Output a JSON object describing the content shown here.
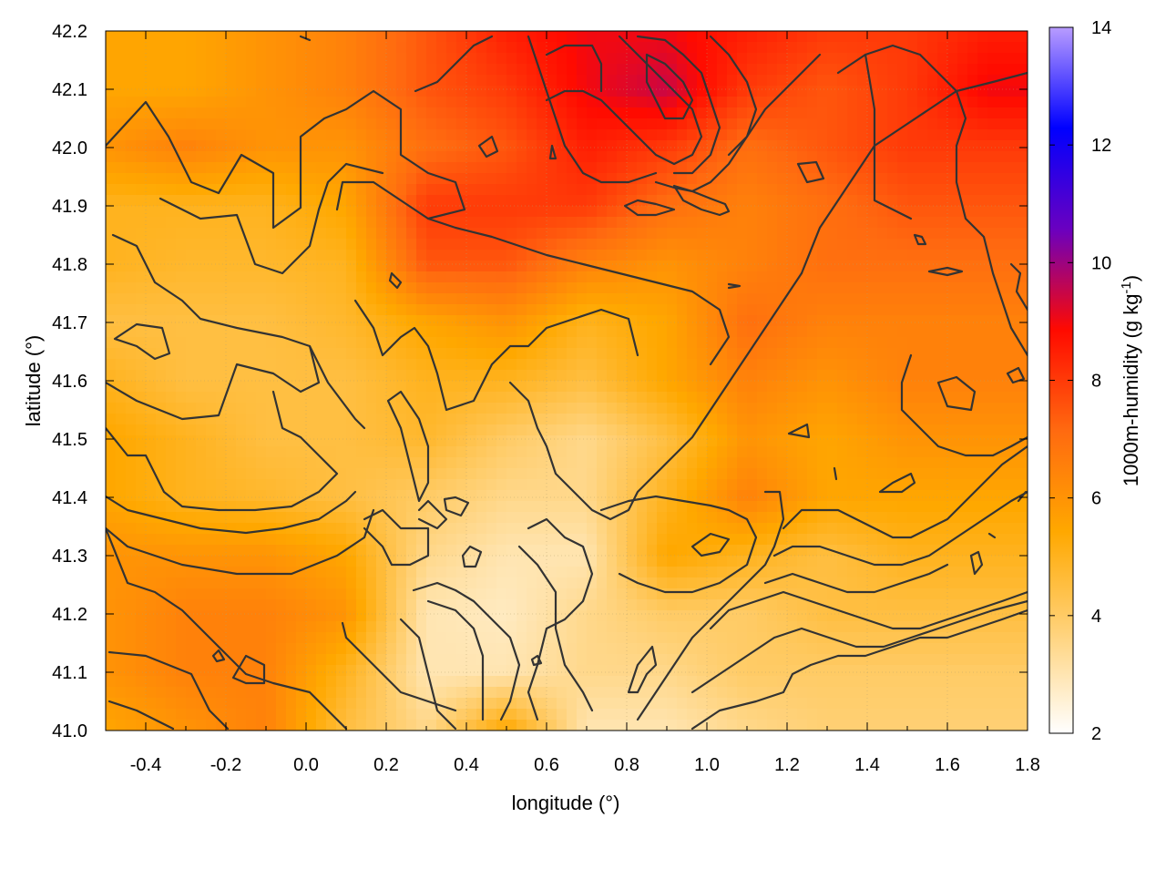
{
  "chart_data": {
    "type": "heatmap",
    "title": "",
    "xlabel": "longitude (°)",
    "ylabel": "latitude (°)",
    "colorbar_label": "1000m-humidity (g kg",
    "colorbar_label_sup": "-1",
    "colorbar_label_end": ")",
    "xlim": [
      -0.5,
      1.8
    ],
    "ylim": [
      41.0,
      42.2
    ],
    "x_ticks": [
      "-0.4",
      "-0.2",
      "0.0",
      "0.2",
      "0.4",
      "0.6",
      "0.8",
      "1.0",
      "1.2",
      "1.4",
      "1.6",
      "1.8"
    ],
    "x_tick_values": [
      -0.4,
      -0.2,
      0.0,
      0.2,
      0.4,
      0.6,
      0.8,
      1.0,
      1.2,
      1.4,
      1.6,
      1.8
    ],
    "y_ticks": [
      "41.0",
      "41.1",
      "41.2",
      "41.3",
      "41.4",
      "41.5",
      "41.6",
      "41.7",
      "41.8",
      "41.9",
      "42.0",
      "42.1",
      "42.2"
    ],
    "y_tick_values": [
      41.0,
      41.1,
      41.2,
      41.3,
      41.4,
      41.5,
      41.6,
      41.7,
      41.8,
      41.9,
      42.0,
      42.1,
      42.2
    ],
    "colorbar_ticks": [
      "2",
      "4",
      "6",
      "8",
      "10",
      "12",
      "14"
    ],
    "colorbar_tick_values": [
      2,
      4,
      6,
      8,
      10,
      12,
      14
    ],
    "colorbar_range": [
      2,
      14
    ],
    "colormap": [
      "#ffffff",
      "#ffd27a",
      "#ffa800",
      "#ff6a10",
      "#ff0a00",
      "#6a00c0",
      "#0000ff",
      "#b89cff"
    ],
    "grid": true,
    "legend": "none",
    "humidity_grid": {
      "lon": [
        -0.5,
        -0.3,
        -0.1,
        0.1,
        0.3,
        0.5,
        0.7,
        0.9,
        1.1,
        1.3,
        1.5,
        1.7
      ],
      "lat": [
        42.2,
        42.1,
        42.0,
        41.9,
        41.8,
        41.7,
        41.6,
        41.5,
        41.4,
        41.3,
        41.2,
        41.1,
        41.0
      ],
      "values": [
        [
          5.5,
          5.5,
          6.0,
          6.5,
          7.5,
          8.5,
          9.0,
          9.0,
          8.5,
          8.0,
          8.0,
          8.5
        ],
        [
          5.5,
          5.5,
          6.0,
          6.5,
          7.5,
          8.0,
          9.0,
          9.5,
          8.0,
          7.5,
          8.0,
          9.0
        ],
        [
          6.0,
          6.5,
          6.0,
          6.0,
          7.0,
          7.5,
          8.5,
          8.0,
          7.0,
          7.5,
          8.0,
          8.0
        ],
        [
          5.0,
          5.0,
          5.0,
          5.5,
          8.0,
          8.0,
          8.0,
          7.0,
          6.5,
          7.0,
          7.5,
          7.5
        ],
        [
          5.0,
          4.8,
          4.8,
          5.0,
          7.5,
          7.5,
          6.5,
          6.0,
          6.5,
          7.0,
          7.0,
          7.0
        ],
        [
          4.5,
          4.5,
          4.5,
          4.8,
          5.5,
          6.0,
          5.0,
          5.5,
          7.0,
          6.5,
          6.5,
          6.5
        ],
        [
          5.0,
          4.5,
          4.5,
          4.5,
          5.0,
          5.0,
          4.5,
          5.5,
          6.5,
          6.0,
          6.5,
          6.5
        ],
        [
          5.5,
          5.0,
          4.5,
          4.5,
          4.8,
          4.0,
          3.5,
          4.5,
          6.0,
          5.5,
          6.0,
          6.0
        ],
        [
          5.5,
          5.0,
          4.8,
          4.5,
          4.0,
          3.5,
          3.5,
          5.0,
          6.5,
          5.5,
          5.5,
          5.5
        ],
        [
          6.0,
          6.0,
          6.0,
          5.5,
          3.5,
          3.0,
          3.0,
          5.5,
          5.0,
          4.5,
          5.0,
          5.0
        ],
        [
          6.0,
          6.5,
          6.5,
          6.0,
          3.0,
          2.8,
          3.5,
          4.0,
          4.0,
          4.5,
          4.5,
          4.5
        ],
        [
          6.0,
          6.5,
          6.5,
          5.0,
          3.0,
          3.0,
          3.5,
          3.5,
          4.0,
          4.0,
          4.0,
          4.0
        ],
        [
          5.5,
          6.0,
          6.5,
          4.5,
          3.5,
          5.5,
          3.0,
          3.0,
          3.5,
          3.8,
          3.8,
          3.8
        ]
      ]
    }
  }
}
